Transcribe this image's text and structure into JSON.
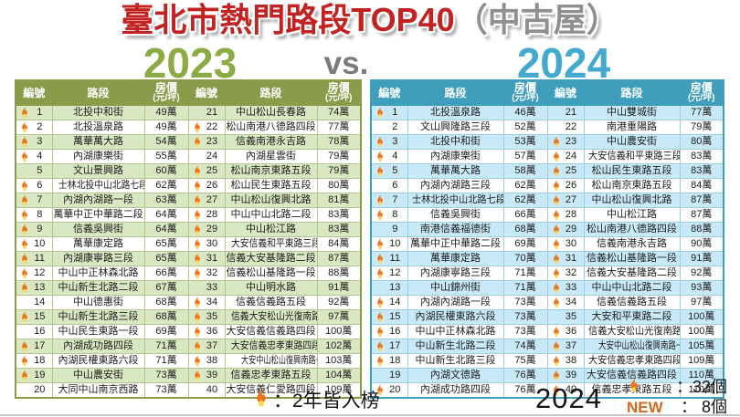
{
  "title": {
    "main": "臺北市熱門路段TOP40",
    "suffix": "（中古屋）"
  },
  "header": {
    "year_left": "2023",
    "vs": "vs.",
    "year_right": "2024"
  },
  "columns": {
    "rank": "編號",
    "road": "路段",
    "price_line1": "房價",
    "price_line2": "(元/坪)"
  },
  "footer": {
    "fire_legend": "：2年皆入榜",
    "year_label": "2024",
    "fire_count": "：32個",
    "new_label": "NEW",
    "new_count": "： 8個"
  },
  "colors": {
    "title_red": "#c32222",
    "title_gray": "#8f8f8f",
    "green_2023": "#8cac43",
    "vs_gray": "#7b7b7b",
    "blue_2024": "#43a9cf",
    "table_2023_header": "#8a9b4a",
    "table_2023_row": "#d9e8c3",
    "table_2024_header": "#3f9ebc",
    "table_2024_row": "#c8eaf8",
    "new_orange": "#d2691e",
    "flame_orange": "#f0711c",
    "flame_yellow": "#ffd84d"
  },
  "chart_data": [
    {
      "type": "table",
      "title": "2023",
      "columns": [
        "編號",
        "路段",
        "房價(元/坪)"
      ],
      "fire_icon_meaning": "2年皆入榜",
      "rows": [
        {
          "rank": "1",
          "fire": true,
          "road": "北投中和街",
          "price": "49萬"
        },
        {
          "rank": "2",
          "fire": true,
          "road": "北投溫泉路",
          "price": "49萬"
        },
        {
          "rank": "3",
          "fire": true,
          "road": "萬華萬大路",
          "price": "54萬"
        },
        {
          "rank": "4",
          "fire": true,
          "road": "內湖康樂街",
          "price": "55萬"
        },
        {
          "rank": "5",
          "fire": false,
          "road": "文山景興路",
          "price": "60萬"
        },
        {
          "rank": "6",
          "fire": true,
          "road": "士林北投中山北路七段",
          "price": "62萬"
        },
        {
          "rank": "7",
          "fire": true,
          "road": "內湖內湖路一段",
          "price": "63萬"
        },
        {
          "rank": "8",
          "fire": true,
          "road": "萬華中正中華路二段",
          "price": "64萬"
        },
        {
          "rank": "9",
          "fire": true,
          "road": "信義吳興街",
          "price": "64萬"
        },
        {
          "rank": "10",
          "fire": true,
          "road": "萬華康定路",
          "price": "65萬"
        },
        {
          "rank": "11",
          "fire": true,
          "road": "內湖康寧路三段",
          "price": "65萬"
        },
        {
          "rank": "12",
          "fire": true,
          "road": "中山中正林森北路",
          "price": "66萬"
        },
        {
          "rank": "13",
          "fire": true,
          "road": "中山新生北路二段",
          "price": "67萬"
        },
        {
          "rank": "14",
          "fire": false,
          "road": "中山德惠街",
          "price": "68萬"
        },
        {
          "rank": "15",
          "fire": true,
          "road": "中山新生北路三段",
          "price": "68萬"
        },
        {
          "rank": "16",
          "fire": false,
          "road": "中山民生東路一段",
          "price": "69萬"
        },
        {
          "rank": "17",
          "fire": true,
          "road": "內湖成功路四段",
          "price": "71萬"
        },
        {
          "rank": "18",
          "fire": true,
          "road": "內湖民權東路六段",
          "price": "71萬"
        },
        {
          "rank": "19",
          "fire": true,
          "road": "中山農安街",
          "price": "73萬"
        },
        {
          "rank": "20",
          "fire": false,
          "road": "大同中山南京西路",
          "price": "73萬"
        },
        {
          "rank": "21",
          "fire": false,
          "road": "中山松山長春路",
          "price": "74萬"
        },
        {
          "rank": "22",
          "fire": true,
          "road": "松山南港八德路四段",
          "price": "77萬"
        },
        {
          "rank": "23",
          "fire": true,
          "road": "信義南港永吉路",
          "price": "78萬"
        },
        {
          "rank": "24",
          "fire": false,
          "road": "內湖星雲街",
          "price": "79萬"
        },
        {
          "rank": "25",
          "fire": true,
          "road": "松山南京東路五段",
          "price": "79萬"
        },
        {
          "rank": "26",
          "fire": true,
          "road": "松山民生東路五段",
          "price": "80萬"
        },
        {
          "rank": "27",
          "fire": true,
          "road": "中山松山復興北路",
          "price": "81萬"
        },
        {
          "rank": "28",
          "fire": true,
          "road": "中山中山北路二段",
          "price": "83萬"
        },
        {
          "rank": "29",
          "fire": true,
          "road": "中山松江路",
          "price": "83萬"
        },
        {
          "rank": "30",
          "fire": true,
          "road": "大安信義和平東路三段",
          "price": "84萬"
        },
        {
          "rank": "31",
          "fire": true,
          "road": "信義大安基隆路二段",
          "price": "87萬"
        },
        {
          "rank": "32",
          "fire": true,
          "road": "信義松山基隆路一段",
          "price": "88萬"
        },
        {
          "rank": "33",
          "fire": false,
          "road": "中山明水路",
          "price": "91萬"
        },
        {
          "rank": "34",
          "fire": true,
          "road": "信義信義路五段",
          "price": "92萬"
        },
        {
          "rank": "35",
          "fire": true,
          "road": "信義大安松山光復南路",
          "price": "97萬"
        },
        {
          "rank": "36",
          "fire": true,
          "road": "大安信義信義路四段",
          "price": "100萬"
        },
        {
          "rank": "37",
          "fire": true,
          "road": "大安信義忠孝東路四段",
          "price": "102萬"
        },
        {
          "rank": "38",
          "fire": true,
          "road": "大安中山松山復興南路一段",
          "price": "103萬"
        },
        {
          "rank": "39",
          "fire": true,
          "road": "信義忠孝東路五段",
          "price": "104萬"
        },
        {
          "rank": "40",
          "fire": false,
          "road": "大安信義仁愛路四段",
          "price": "109萬"
        }
      ]
    },
    {
      "type": "table",
      "title": "2024",
      "columns": [
        "編號",
        "路段",
        "房價(元/坪)"
      ],
      "fire_icon_meaning": "2年皆入榜",
      "stats": {
        "fire": "32個",
        "new": "8個"
      },
      "rows": [
        {
          "rank": "1",
          "fire": true,
          "road": "北投溫泉路",
          "price": "46萬"
        },
        {
          "rank": "2",
          "fire": false,
          "road": "文山興隆路三段",
          "price": "52萬"
        },
        {
          "rank": "3",
          "fire": true,
          "road": "北投中和街",
          "price": "53萬"
        },
        {
          "rank": "4",
          "fire": true,
          "road": "內湖康樂街",
          "price": "57萬"
        },
        {
          "rank": "5",
          "fire": true,
          "road": "萬華萬大路",
          "price": "58萬"
        },
        {
          "rank": "6",
          "fire": false,
          "road": "內湖內湖路三段",
          "price": "62萬"
        },
        {
          "rank": "7",
          "fire": true,
          "road": "士林北投中山北路七段",
          "price": "62萬"
        },
        {
          "rank": "8",
          "fire": true,
          "road": "信義吳興街",
          "price": "66萬"
        },
        {
          "rank": "9",
          "fire": false,
          "road": "南港信義福德街",
          "price": "68萬"
        },
        {
          "rank": "10",
          "fire": true,
          "road": "萬華中正中華路二段",
          "price": "69萬"
        },
        {
          "rank": "11",
          "fire": true,
          "road": "萬華康定路",
          "price": "70萬"
        },
        {
          "rank": "12",
          "fire": true,
          "road": "內湖康寧路三段",
          "price": "71萬"
        },
        {
          "rank": "13",
          "fire": false,
          "road": "中山錦州街",
          "price": "71萬"
        },
        {
          "rank": "14",
          "fire": true,
          "road": "內湖內湖路一段",
          "price": "73萬"
        },
        {
          "rank": "15",
          "fire": true,
          "road": "內湖民權東路六段",
          "price": "73萬"
        },
        {
          "rank": "16",
          "fire": true,
          "road": "中山中正林森北路",
          "price": "73萬"
        },
        {
          "rank": "17",
          "fire": true,
          "road": "中山新生北路二段",
          "price": "74萬"
        },
        {
          "rank": "18",
          "fire": true,
          "road": "中山新生北路三段",
          "price": "75萬"
        },
        {
          "rank": "19",
          "fire": false,
          "road": "內湖文德路",
          "price": "76萬"
        },
        {
          "rank": "20",
          "fire": true,
          "road": "內湖成功路四段",
          "price": "76萬"
        },
        {
          "rank": "21",
          "fire": false,
          "road": "中山雙城街",
          "price": "77萬"
        },
        {
          "rank": "22",
          "fire": false,
          "road": "南港重陽路",
          "price": "79萬"
        },
        {
          "rank": "23",
          "fire": true,
          "road": "中山農安街",
          "price": "80萬"
        },
        {
          "rank": "24",
          "fire": true,
          "road": "大安信義和平東路三段",
          "price": "83萬"
        },
        {
          "rank": "25",
          "fire": true,
          "road": "松山民生東路五段",
          "price": "83萬"
        },
        {
          "rank": "26",
          "fire": true,
          "road": "松山南京東路五段",
          "price": "84萬"
        },
        {
          "rank": "27",
          "fire": true,
          "road": "中山松山復興北路",
          "price": "87萬"
        },
        {
          "rank": "28",
          "fire": true,
          "road": "中山松江路",
          "price": "87萬"
        },
        {
          "rank": "29",
          "fire": true,
          "road": "松山南港八德路四段",
          "price": "88萬"
        },
        {
          "rank": "30",
          "fire": true,
          "road": "信義南港永吉路",
          "price": "90萬"
        },
        {
          "rank": "31",
          "fire": true,
          "road": "信義松山基隆路一段",
          "price": "91萬"
        },
        {
          "rank": "32",
          "fire": true,
          "road": "信義大安基隆路二段",
          "price": "92萬"
        },
        {
          "rank": "33",
          "fire": true,
          "road": "中山中山北路二段",
          "price": "93萬"
        },
        {
          "rank": "34",
          "fire": true,
          "road": "信義信義路五段",
          "price": "97萬"
        },
        {
          "rank": "35",
          "fire": false,
          "road": "大安和平東路二段",
          "price": "100萬"
        },
        {
          "rank": "36",
          "fire": true,
          "road": "信義大安松山光復南路",
          "price": "100萬"
        },
        {
          "rank": "37",
          "fire": true,
          "road": "大安中山松山復興南路一段",
          "price": "105萬"
        },
        {
          "rank": "38",
          "fire": true,
          "road": "大安信義忠孝東路四段",
          "price": "109萬"
        },
        {
          "rank": "39",
          "fire": true,
          "road": "大安信義信義路四段",
          "price": "110萬"
        },
        {
          "rank": "40",
          "fire": true,
          "road": "信義忠孝東路五段",
          "price": "110萬"
        }
      ]
    }
  ]
}
